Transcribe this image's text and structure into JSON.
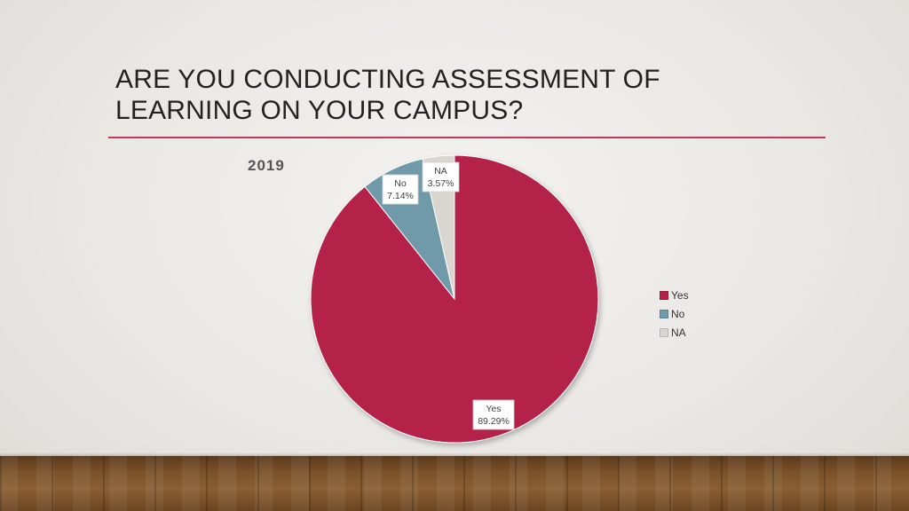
{
  "slide": {
    "title_line1": "ARE YOU CONDUCTING ASSESSMENT OF",
    "title_line2": "LEARNING ON YOUR CAMPUS?"
  },
  "chart_data": {
    "type": "pie",
    "title": "2019",
    "legend_position": "right",
    "slices": [
      {
        "label": "Yes",
        "value": 89.29,
        "value_label": "89.29%",
        "color": "#b5234a"
      },
      {
        "label": "No",
        "value": 7.14,
        "value_label": "7.14%",
        "color": "#6f9aaa"
      },
      {
        "label": "NA",
        "value": 3.57,
        "value_label": "3.57%",
        "color": "#d9d6d0"
      }
    ]
  }
}
